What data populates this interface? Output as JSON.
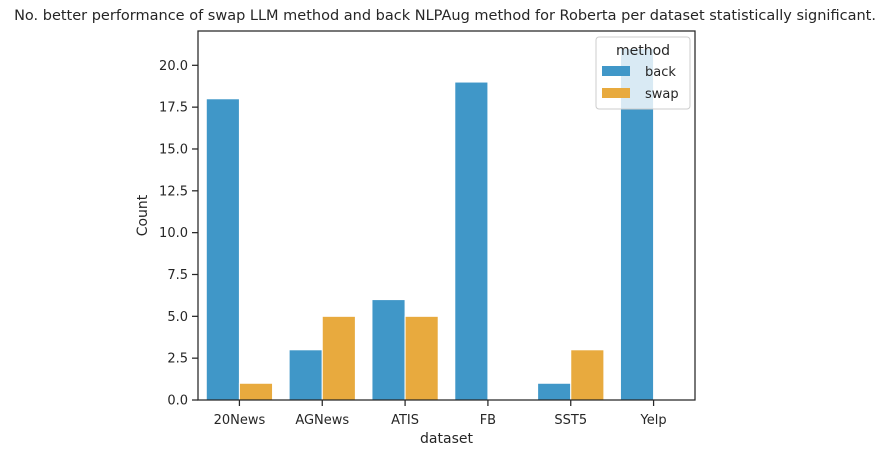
{
  "chart_data": {
    "type": "bar",
    "title": "No. better performance of swap LLM method and back NLPAug method for Roberta per dataset statistically significant.",
    "xlabel": "dataset",
    "ylabel": "Count",
    "categories": [
      "20News",
      "AGNews",
      "ATIS",
      "FB",
      "SST5",
      "Yelp"
    ],
    "series": [
      {
        "name": "back",
        "color": "#4097c8",
        "values": [
          18,
          3,
          6,
          19,
          1,
          21
        ]
      },
      {
        "name": "swap",
        "color": "#e8aa3e",
        "values": [
          1,
          5,
          5,
          0,
          3,
          0
        ]
      }
    ],
    "ylim": [
      0,
      22.05
    ],
    "yticks": [
      0,
      2.5,
      5,
      7.5,
      10,
      12.5,
      15,
      17.5,
      20
    ],
    "ytick_labels": [
      "0.0",
      "2.5",
      "5.0",
      "7.5",
      "10.0",
      "12.5",
      "15.0",
      "17.5",
      "20.0"
    ],
    "grid": false,
    "legend": {
      "title": "method",
      "placement": "top-right"
    }
  }
}
